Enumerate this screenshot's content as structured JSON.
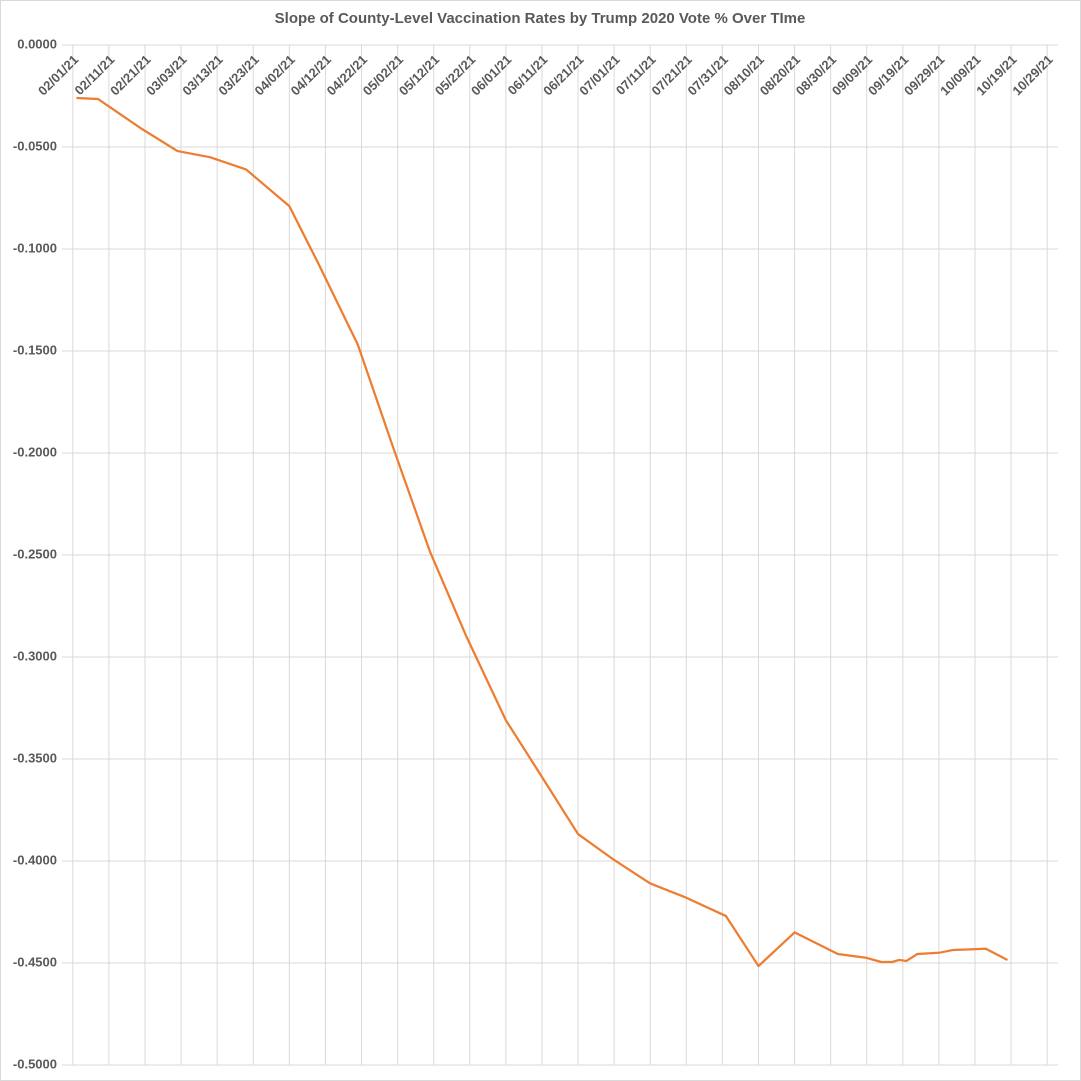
{
  "chart_data": {
    "type": "line",
    "title": "Slope of County-Level Vaccination Rates by Trump 2020 Vote % Over TIme",
    "x": [
      "02/02/21",
      "02/08/21",
      "02/20/21",
      "03/02/21",
      "03/11/21",
      "03/21/21",
      "04/02/21",
      "04/10/21",
      "04/21/21",
      "05/01/21",
      "05/11/21",
      "05/21/21",
      "06/01/21",
      "06/10/21",
      "06/21/21",
      "07/01/21",
      "07/11/21",
      "07/21/21",
      "08/01/21",
      "08/10/21",
      "08/20/21",
      "09/01/21",
      "09/09/21",
      "09/13/21",
      "09/16/21",
      "09/18/21",
      "09/20/21",
      "09/23/21",
      "09/29/21",
      "10/03/21",
      "10/12/21",
      "10/18/21"
    ],
    "values": [
      -0.026,
      -0.0265,
      -0.041,
      -0.052,
      -0.055,
      -0.061,
      -0.079,
      -0.107,
      -0.147,
      -0.1985,
      -0.2485,
      -0.2897,
      -0.331,
      -0.356,
      -0.3868,
      -0.3995,
      -0.411,
      -0.418,
      -0.427,
      -0.4515,
      -0.435,
      -0.4456,
      -0.4475,
      -0.4495,
      -0.4495,
      -0.4485,
      -0.449,
      -0.4456,
      -0.445,
      -0.4436,
      -0.443,
      -0.4485
    ],
    "color": "#ED7D31",
    "xlim": [
      "01/29/21",
      "11/01/21"
    ],
    "xticks": [
      "02/01/21",
      "02/11/21",
      "02/21/21",
      "03/03/21",
      "03/13/21",
      "03/23/21",
      "04/02/21",
      "04/12/21",
      "04/22/21",
      "05/02/21",
      "05/12/21",
      "05/22/21",
      "06/01/21",
      "06/11/21",
      "06/21/21",
      "07/01/21",
      "07/11/21",
      "07/21/21",
      "07/31/21",
      "08/10/21",
      "08/20/21",
      "08/30/21",
      "09/09/21",
      "09/19/21",
      "09/29/21",
      "10/09/21",
      "10/19/21",
      "10/29/21"
    ],
    "ylim": [
      -0.5,
      0
    ],
    "yticks": [
      {
        "value": 0,
        "label": "0.0000"
      },
      {
        "value": -0.05,
        "label": "-0.0500"
      },
      {
        "value": -0.1,
        "label": "-0.1000"
      },
      {
        "value": -0.15,
        "label": "-0.1500"
      },
      {
        "value": -0.2,
        "label": "-0.2000"
      },
      {
        "value": -0.25,
        "label": "-0.2500"
      },
      {
        "value": -0.3,
        "label": "-0.3000"
      },
      {
        "value": -0.35,
        "label": "-0.3500"
      },
      {
        "value": -0.4,
        "label": "-0.4000"
      },
      {
        "value": -0.45,
        "label": "-0.4500"
      },
      {
        "value": -0.5,
        "label": "-0.5000"
      }
    ],
    "grid": true
  }
}
